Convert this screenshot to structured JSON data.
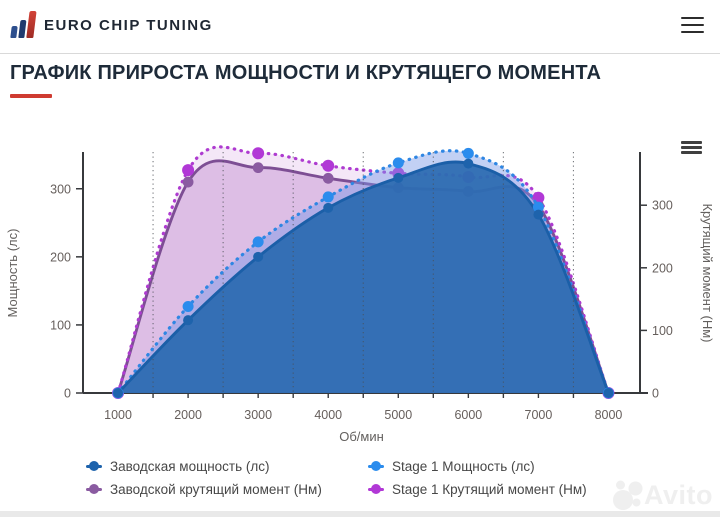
{
  "header": {
    "brand": "EURO CHIP TUNING"
  },
  "title": {
    "text": "ГРАФИК ПРИРОСТА МОЩНОСТИ И КРУТЯЩЕГО МОМЕНТА",
    "accent_color": "#cf3b31"
  },
  "chart_data": {
    "type": "area",
    "x_label": "Об/мин",
    "y_left_label": "Мощность (лс)",
    "y_right_label": "Крутящий момент (Нм)",
    "x": [
      1000,
      2000,
      3000,
      4000,
      5000,
      6000,
      7000,
      8000
    ],
    "x_ticks": [
      1000,
      2000,
      3000,
      4000,
      5000,
      6000,
      7000,
      8000
    ],
    "y_left_ticks": [
      0,
      100,
      200,
      300
    ],
    "y_right_ticks": [
      0,
      100,
      200,
      300
    ],
    "xlim": [
      500,
      8450
    ],
    "ylim_left": [
      0,
      354
    ],
    "ylim_right": [
      0,
      385
    ],
    "grid": "vertical dotted minor gridlines at 1500..7500",
    "legend_position": "bottom",
    "series": [
      {
        "id": "factory_torque",
        "name": "Заводской крутящий момент (Нм)",
        "axis": "right",
        "line": "solid",
        "color": "#7d4e94",
        "marker_color": "#8a5ba1",
        "fill": "#c9a0d6",
        "fill_opacity": 0.62,
        "values": [
          0,
          337,
          360,
          343,
          328,
          322,
          300,
          0
        ]
      },
      {
        "id": "stage1_torque",
        "name": "Stage 1 Крутящий момент (Нм)",
        "axis": "right",
        "line": "dotted",
        "color": "#ae3bd0",
        "marker_color": "#b138d6",
        "fill": "#d9aee6",
        "fill_opacity": 0.3,
        "values": [
          0,
          356,
          383,
          363,
          351,
          345,
          312,
          0
        ]
      },
      {
        "id": "stage1_power",
        "name": "Stage 1 Мощность (лс)",
        "axis": "left",
        "line": "dotted",
        "color": "#2f86e3",
        "marker_color": "#2b8ced",
        "fill": "#7896e6",
        "fill_opacity": 0.45,
        "values": [
          0,
          127,
          222,
          288,
          338,
          352,
          273,
          0
        ]
      },
      {
        "id": "factory_power",
        "name": "Заводская мощность (лс)",
        "axis": "left",
        "line": "solid",
        "color": "#1b5fa8",
        "marker_color": "#1e63ac",
        "fill": "#2b6ab0",
        "fill_opacity": 0.93,
        "values": [
          0,
          107,
          200,
          272,
          316,
          337,
          262,
          0
        ]
      }
    ]
  },
  "legend": {
    "items": [
      {
        "label": "Заводская мощность (лс)",
        "color": "#1e63ac"
      },
      {
        "label": "Stage 1 Мощность (лс)",
        "color": "#2b8ced"
      },
      {
        "label": "Заводской крутящий момент (Нм)",
        "color": "#8a5ba1"
      },
      {
        "label": "Stage 1 Крутящий момент (Нм)",
        "color": "#b138d6"
      }
    ]
  },
  "watermark": {
    "text": "Avito"
  }
}
